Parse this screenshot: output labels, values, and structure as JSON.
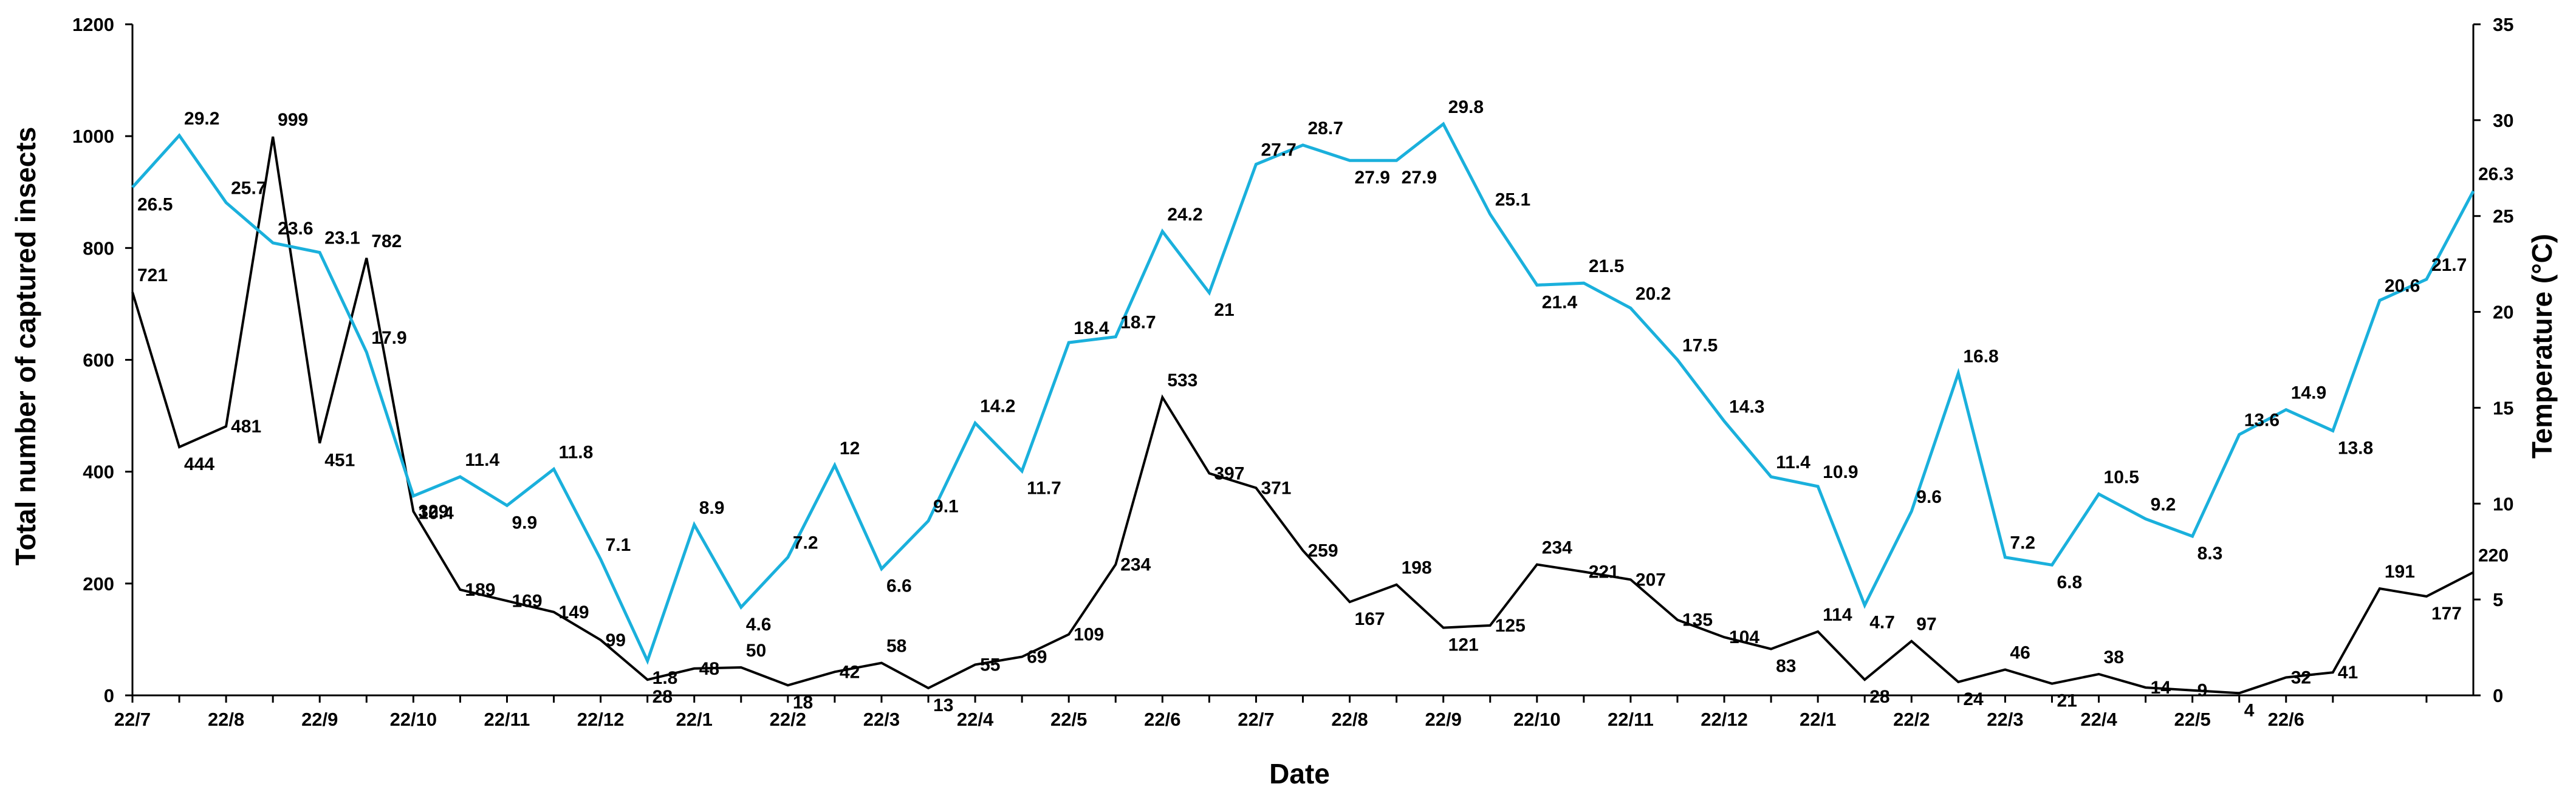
{
  "chart_data": {
    "type": "line",
    "title": "",
    "xlabel": "Date",
    "ylabel_left": "Total number of captured insects",
    "ylabel_right": "Temperature (°C)",
    "ylim_left": [
      0,
      1200
    ],
    "yticks_left": [
      0,
      200,
      400,
      600,
      800,
      1000,
      1200
    ],
    "ylim_right": [
      0,
      35
    ],
    "yticks_right": [
      0,
      5,
      10,
      15,
      20,
      25,
      30,
      35
    ],
    "xtick_labels": [
      "22/7",
      "22/8",
      "22/9",
      "22/10",
      "22/11",
      "22/12",
      "22/1",
      "22/2",
      "22/3",
      "22/4",
      "22/5",
      "22/6",
      "22/7",
      "22/8",
      "22/9",
      "22/10",
      "22/11",
      "22/12",
      "22/1",
      "22/2",
      "22/3",
      "22/4",
      "22/5",
      "22/6"
    ],
    "grid": false,
    "legend": "none",
    "series": [
      {
        "axis": "left",
        "color": "#000000",
        "values": [
          721,
          444,
          481,
          999,
          451,
          782,
          329,
          189,
          169,
          149,
          99,
          28,
          48,
          50,
          18,
          42,
          58,
          13,
          55,
          69,
          109,
          234,
          533,
          397,
          371,
          259,
          167,
          198,
          121,
          125,
          234,
          221,
          207,
          135,
          104,
          83,
          114,
          28,
          97,
          24,
          46,
          21,
          38,
          14,
          9,
          4,
          32,
          41,
          191,
          177,
          220
        ],
        "labels": [
          "721",
          "444",
          "481",
          "999",
          "451",
          "782",
          "329",
          "189",
          "169",
          "149",
          "99",
          "28",
          "48",
          "50",
          "18",
          "42",
          "58",
          "13",
          "55",
          "69",
          "109",
          "234",
          "533",
          "397",
          "371",
          "259",
          "167",
          "198",
          "121",
          "125",
          "234",
          "221",
          "207",
          "135",
          "104",
          "83",
          "114",
          "28",
          "97",
          "24",
          "46",
          "21",
          "38",
          "14",
          "9",
          "4",
          "32",
          "41",
          "191",
          "177",
          "220"
        ]
      },
      {
        "axis": "right",
        "color": "#1ab0dc",
        "values": [
          26.5,
          29.2,
          25.7,
          23.6,
          23.1,
          17.9,
          10.4,
          11.4,
          9.9,
          11.8,
          7.1,
          1.8,
          8.9,
          4.6,
          7.2,
          12,
          6.6,
          9.1,
          14.2,
          11.7,
          18.4,
          18.7,
          24.2,
          21,
          27.7,
          28.7,
          27.9,
          27.9,
          29.8,
          25.1,
          21.4,
          21.5,
          20.2,
          17.5,
          14.3,
          11.4,
          10.9,
          4.7,
          9.6,
          16.8,
          7.2,
          6.8,
          10.5,
          9.2,
          8.3,
          13.6,
          14.9,
          13.8,
          20.6,
          21.7,
          26.3
        ],
        "labels": [
          "26.5",
          "29.2",
          "25.7",
          "23.6",
          "23.1",
          "17.9",
          "10.4",
          "11.4",
          "9.9",
          "11.8",
          "7.1",
          "1.8",
          "8.9",
          "4.6",
          "7.2",
          "12",
          "6.6",
          "9.1",
          "14.2",
          "11.7",
          "18.4",
          "18.7",
          "24.2",
          "21",
          "27.7",
          "28.7",
          "27.9",
          "27.9",
          "29.8",
          "25.1",
          "21.4",
          "21.5",
          "20.2",
          "17.5",
          "14.3",
          "11.4",
          "10.9",
          "4.7",
          "9.6",
          "16.8",
          "7.2",
          "6.8",
          "10.5",
          "9.2",
          "8.3",
          "13.6",
          "14.9",
          "13.8",
          "20.6",
          "21.7",
          "26.3"
        ]
      }
    ]
  }
}
